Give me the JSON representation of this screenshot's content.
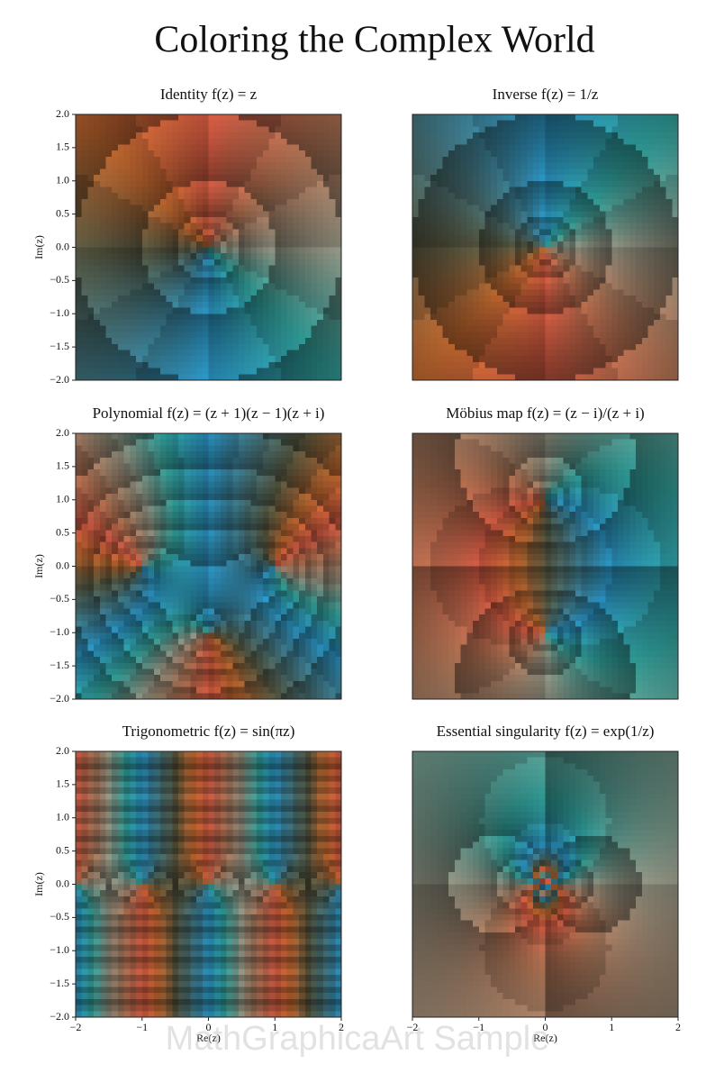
{
  "title": "Coloring the Complex World",
  "watermark": "MathGraphicaArt Sample",
  "chart_data": [
    {
      "type": "domain-coloring",
      "title": "Identity f(z) = z",
      "xlim": [
        -2,
        2
      ],
      "ylim": [
        -2,
        2
      ],
      "ylabel": "Im(z)",
      "yticks": [
        {
          "value": 2,
          "label": "2.0"
        },
        1.5,
        {
          "value": 1,
          "label": "1.0"
        },
        0.5,
        {
          "value": 0,
          "label": "0.0"
        },
        {
          "value": -0.5,
          "label": "−0.5"
        },
        {
          "value": -1,
          "label": "−1.0"
        },
        {
          "value": -1.5,
          "label": "−1.5"
        },
        {
          "value": -2,
          "label": "−2.0"
        }
      ]
    },
    {
      "type": "domain-coloring",
      "title": "Inverse f(z) = 1/z",
      "xlim": [
        -2,
        2
      ],
      "ylim": [
        -2,
        2
      ]
    },
    {
      "type": "domain-coloring",
      "title": "Polynomial f(z) = (z + 1)(z − 1)(z + i)",
      "xlim": [
        -2,
        2
      ],
      "ylim": [
        -2,
        2
      ],
      "ylabel": "Im(z)",
      "yticks": [
        {
          "value": 2,
          "label": "2.0"
        },
        1.5,
        {
          "value": 1,
          "label": "1.0"
        },
        0.5,
        {
          "value": 0,
          "label": "0.0"
        },
        {
          "value": -0.5,
          "label": "−0.5"
        },
        {
          "value": -1,
          "label": "−1.0"
        },
        {
          "value": -1.5,
          "label": "−1.5"
        },
        {
          "value": -2,
          "label": "−2.0"
        }
      ]
    },
    {
      "type": "domain-coloring",
      "title": "Möbius map f(z) = (z − i)/(z + i)",
      "xlim": [
        -2,
        2
      ],
      "ylim": [
        -2,
        2
      ]
    },
    {
      "type": "domain-coloring",
      "title": "Trigonometric f(z) = sin(πz)",
      "xlim": [
        -2,
        2
      ],
      "ylim": [
        -2,
        2
      ],
      "ylabel": "Im(z)",
      "xlabel": "Re(z)",
      "yticks": [
        {
          "value": 2,
          "label": "2.0"
        },
        1.5,
        {
          "value": 1,
          "label": "1.0"
        },
        0.5,
        {
          "value": 0,
          "label": "0.0"
        },
        {
          "value": -0.5,
          "label": "−0.5"
        },
        {
          "value": -1,
          "label": "−1.0"
        },
        {
          "value": -1.5,
          "label": "−1.5"
        },
        {
          "value": -2,
          "label": "−2.0"
        }
      ],
      "xticks": [
        {
          "value": -2,
          "label": "−2"
        },
        {
          "value": -1,
          "label": "−1"
        },
        0,
        1,
        2
      ]
    },
    {
      "type": "domain-coloring",
      "title": "Essential singularity f(z) = exp(1/z)",
      "xlim": [
        -2,
        2
      ],
      "ylim": [
        -2,
        2
      ],
      "xlabel": "Re(z)",
      "xticks": [
        {
          "value": -2,
          "label": "−2"
        },
        {
          "value": -1,
          "label": "−1"
        },
        0,
        1,
        2
      ]
    }
  ]
}
